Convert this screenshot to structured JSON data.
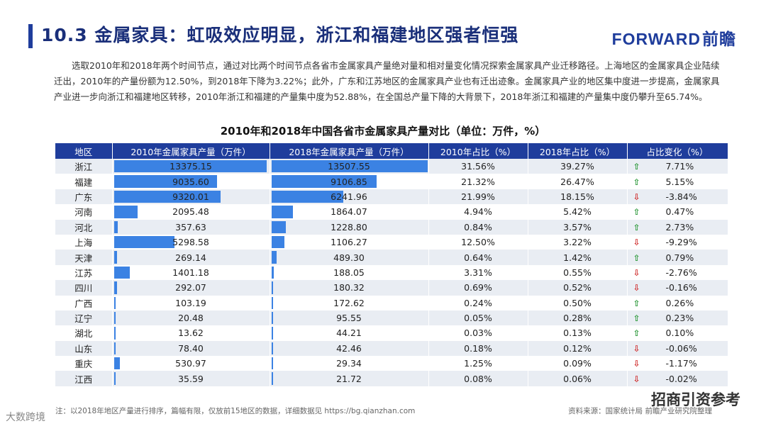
{
  "header": {
    "title": "10.3  金属家具：虹吸效应明显，浙江和福建地区强者恒强",
    "logo_en": "FORWARD",
    "logo_cn": "前瞻"
  },
  "intro_text": "选取2010年和2018年两个时间节点，通过对比两个时间节点各省市金属家具产量绝对量和相对量变化情况探索金属家具产业迁移路径。上海地区的金属家具企业陆续迁出，2010年的产量份额为12.50%，到2018年下降为3.22%；此外，广东和江苏地区的金属家具产业也有迁出迹象。金属家具产业的地区集中度进一步提高，金属家具产业进一步向浙江和福建地区转移，2010年浙江和福建的产量集中度为52.88%，在全国总产量下降的大背景下，2018年浙江和福建的产量集中度仍攀升至65.74%。",
  "table": {
    "title": "2010年和2018年中国各省市金属家具产量对比（单位：万件，%）",
    "headers": [
      "地区",
      "2010年金属家具产量（万件）",
      "2018年金属家具产量（万件）",
      "2010年占比（%）",
      "2018年占比（%）",
      "占比变化（%）"
    ],
    "max_value": 13507.55,
    "rows": [
      {
        "region": "浙江",
        "v2010": 13375.15,
        "v2010_text": "13375.15",
        "v2018": 13507.55,
        "v2018_text": "13507.55",
        "s2010": "31.56%",
        "s2018": "39.27%",
        "dir": "up",
        "change": "7.71%"
      },
      {
        "region": "福建",
        "v2010": 9035.6,
        "v2010_text": "9035.60",
        "v2018": 9106.85,
        "v2018_text": "9106.85",
        "s2010": "21.32%",
        "s2018": "26.47%",
        "dir": "up",
        "change": "5.15%"
      },
      {
        "region": "广东",
        "v2010": 9320.01,
        "v2010_text": "9320.01",
        "v2018": 6241.96,
        "v2018_text": "6241.96",
        "s2010": "21.99%",
        "s2018": "18.15%",
        "dir": "down",
        "change": "-3.84%"
      },
      {
        "region": "河南",
        "v2010": 2095.48,
        "v2010_text": "2095.48",
        "v2018": 1864.07,
        "v2018_text": "1864.07",
        "s2010": "4.94%",
        "s2018": "5.42%",
        "dir": "up",
        "change": "0.47%"
      },
      {
        "region": "河北",
        "v2010": 357.63,
        "v2010_text": "357.63",
        "v2018": 1228.8,
        "v2018_text": "1228.80",
        "s2010": "0.84%",
        "s2018": "3.57%",
        "dir": "up",
        "change": "2.73%"
      },
      {
        "region": "上海",
        "v2010": 5298.58,
        "v2010_text": "5298.58",
        "v2018": 1106.27,
        "v2018_text": "1106.27",
        "s2010": "12.50%",
        "s2018": "3.22%",
        "dir": "down",
        "change": "-9.29%"
      },
      {
        "region": "天津",
        "v2010": 269.14,
        "v2010_text": "269.14",
        "v2018": 489.3,
        "v2018_text": "489.30",
        "s2010": "0.64%",
        "s2018": "1.42%",
        "dir": "up",
        "change": "0.79%"
      },
      {
        "region": "江苏",
        "v2010": 1401.18,
        "v2010_text": "1401.18",
        "v2018": 188.05,
        "v2018_text": "188.05",
        "s2010": "3.31%",
        "s2018": "0.55%",
        "dir": "down",
        "change": "-2.76%"
      },
      {
        "region": "四川",
        "v2010": 292.07,
        "v2010_text": "292.07",
        "v2018": 180.32,
        "v2018_text": "180.32",
        "s2010": "0.69%",
        "s2018": "0.52%",
        "dir": "down",
        "change": "-0.16%"
      },
      {
        "region": "广西",
        "v2010": 103.19,
        "v2010_text": "103.19",
        "v2018": 172.62,
        "v2018_text": "172.62",
        "s2010": "0.24%",
        "s2018": "0.50%",
        "dir": "up",
        "change": "0.26%"
      },
      {
        "region": "辽宁",
        "v2010": 20.48,
        "v2010_text": "20.48",
        "v2018": 95.55,
        "v2018_text": "95.55",
        "s2010": "0.05%",
        "s2018": "0.28%",
        "dir": "up",
        "change": "0.23%"
      },
      {
        "region": "湖北",
        "v2010": 13.62,
        "v2010_text": "13.62",
        "v2018": 44.21,
        "v2018_text": "44.21",
        "s2010": "0.03%",
        "s2018": "0.13%",
        "dir": "up",
        "change": "0.10%"
      },
      {
        "region": "山东",
        "v2010": 78.4,
        "v2010_text": "78.40",
        "v2018": 42.46,
        "v2018_text": "42.46",
        "s2010": "0.18%",
        "s2018": "0.12%",
        "dir": "down",
        "change": "-0.06%"
      },
      {
        "region": "重庆",
        "v2010": 530.97,
        "v2010_text": "530.97",
        "v2018": 29.34,
        "v2018_text": "29.34",
        "s2010": "1.25%",
        "s2018": "0.09%",
        "dir": "down",
        "change": "-1.17%"
      },
      {
        "region": "江西",
        "v2010": 35.59,
        "v2010_text": "35.59",
        "v2018": 21.72,
        "v2018_text": "21.72",
        "s2010": "0.08%",
        "s2018": "0.06%",
        "dir": "down",
        "change": "-0.02%"
      }
    ]
  },
  "footer": {
    "note": "注：以2018年地区产量进行排序，篇幅有限，仅放前15地区的数据，详细数据见 https://bg.qianzhan.com",
    "source": "资料来源：国家统计局  前瞻产业研究院整理"
  },
  "watermarks": {
    "left": "大数跨境",
    "right": "招商引资参考"
  },
  "colors": {
    "bar": "#3b82e3",
    "header": "#1f3d9c",
    "up": "#2e9a3c",
    "down": "#d03030"
  }
}
